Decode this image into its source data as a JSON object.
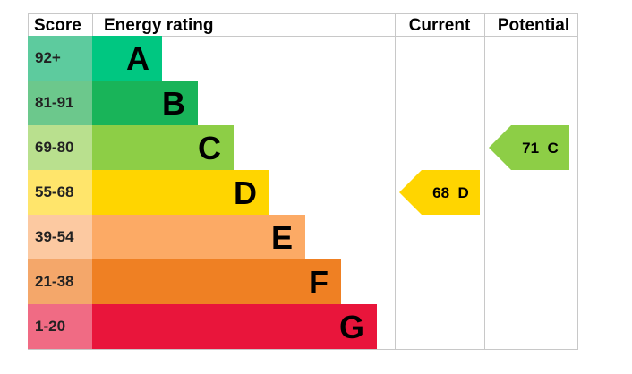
{
  "chart_data": {
    "type": "bar",
    "headers": {
      "score": "Score",
      "rating": "Energy rating",
      "current": "Current",
      "potential": "Potential"
    },
    "bands": [
      {
        "score": "92+",
        "letter": "A",
        "color": "#00c781",
        "score_bg": "#5dcb9e"
      },
      {
        "score": "81-91",
        "letter": "B",
        "color": "#19b459",
        "score_bg": "#6cc88c"
      },
      {
        "score": "69-80",
        "letter": "C",
        "color": "#8dce46",
        "score_bg": "#b9e08e"
      },
      {
        "score": "55-68",
        "letter": "D",
        "color": "#ffd500",
        "score_bg": "#ffe56b"
      },
      {
        "score": "39-54",
        "letter": "E",
        "color": "#fcaa65",
        "score_bg": "#fcc9a1"
      },
      {
        "score": "21-38",
        "letter": "F",
        "color": "#ef8023",
        "score_bg": "#f4a76a"
      },
      {
        "score": "1-20",
        "letter": "G",
        "color": "#e9153b",
        "score_bg": "#f06b84"
      }
    ],
    "current": {
      "value": 68,
      "band": "D",
      "label": "68 D",
      "color": "#ffd500"
    },
    "potential": {
      "value": 71,
      "band": "C",
      "label": "71 C",
      "color": "#8dce46"
    }
  }
}
